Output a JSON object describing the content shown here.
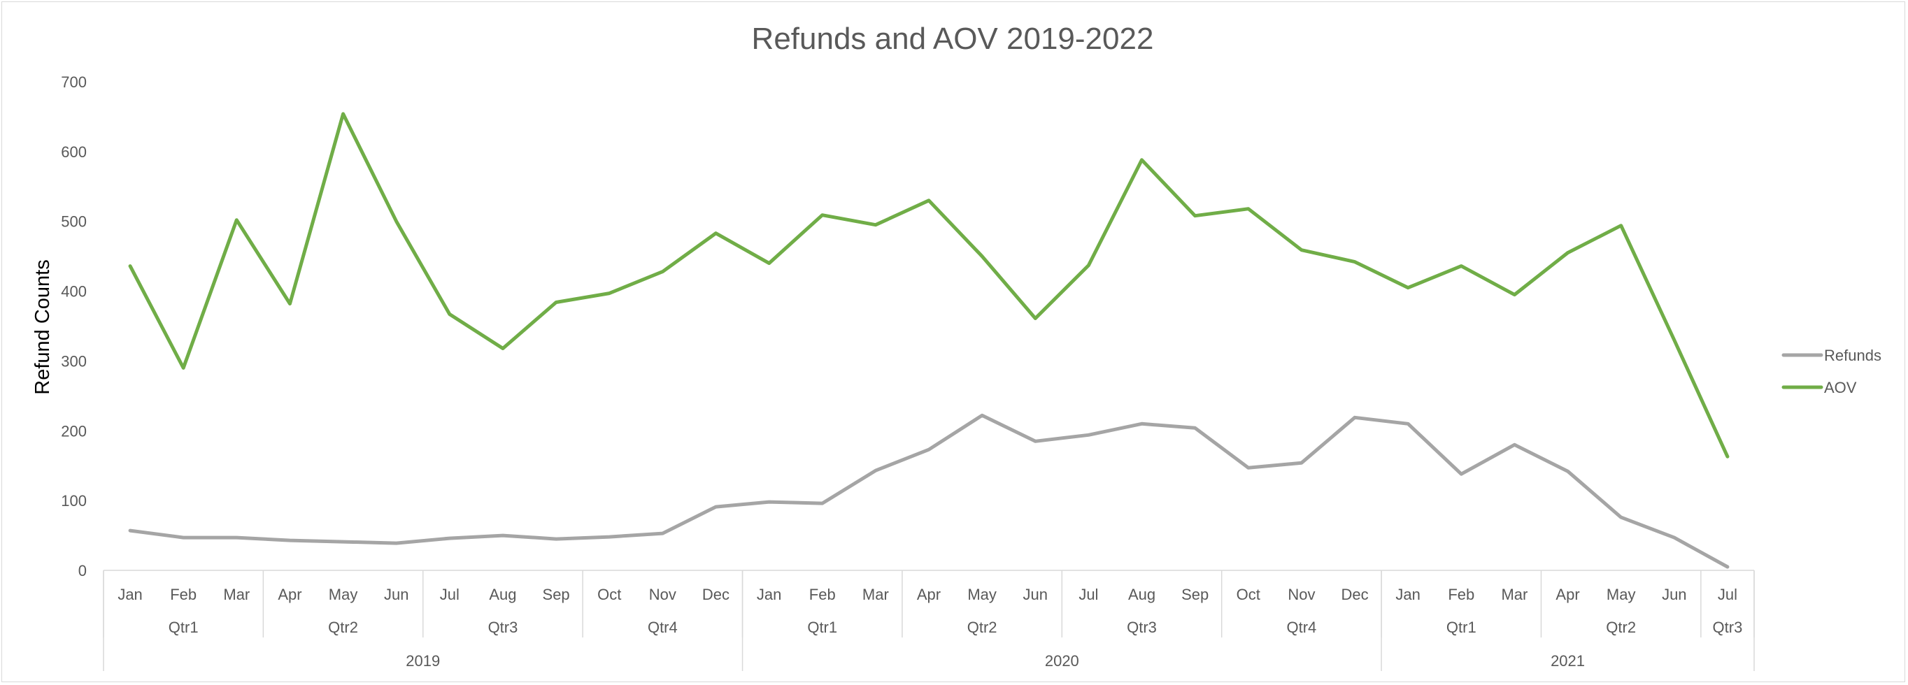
{
  "chart_data": {
    "type": "line",
    "title": "Refunds and AOV 2019-2022",
    "xlabel": "",
    "ylabel": "Refund Counts",
    "ylim": [
      0,
      700
    ],
    "yticks": [
      0,
      100,
      200,
      300,
      400,
      500,
      600,
      700
    ],
    "grid": false,
    "legend_position": "right",
    "categories": [
      "Jan",
      "Feb",
      "Mar",
      "Apr",
      "May",
      "Jun",
      "Jul",
      "Aug",
      "Sep",
      "Oct",
      "Nov",
      "Dec",
      "Jan",
      "Feb",
      "Mar",
      "Apr",
      "May",
      "Jun",
      "Jul",
      "Aug",
      "Sep",
      "Oct",
      "Nov",
      "Dec",
      "Jan",
      "Feb",
      "Mar",
      "Apr",
      "May",
      "Jun",
      "Jul"
    ],
    "quarters": [
      {
        "label": "Qtr1",
        "span": 3
      },
      {
        "label": "Qtr2",
        "span": 3
      },
      {
        "label": "Qtr3",
        "span": 3
      },
      {
        "label": "Qtr4",
        "span": 3
      },
      {
        "label": "Qtr1",
        "span": 3
      },
      {
        "label": "Qtr2",
        "span": 3
      },
      {
        "label": "Qtr3",
        "span": 3
      },
      {
        "label": "Qtr4",
        "span": 3
      },
      {
        "label": "Qtr1",
        "span": 3
      },
      {
        "label": "Qtr2",
        "span": 3
      },
      {
        "label": "Qtr3",
        "span": 1
      }
    ],
    "years": [
      {
        "label": "2019",
        "span": 12
      },
      {
        "label": "2020",
        "span": 12
      },
      {
        "label": "2021",
        "span": 7
      }
    ],
    "series": [
      {
        "name": "Refunds",
        "color": "#a5a5a5",
        "values": [
          57,
          47,
          47,
          43,
          41,
          39,
          46,
          50,
          45,
          48,
          53,
          91,
          98,
          96,
          143,
          173,
          222,
          185,
          194,
          210,
          204,
          147,
          154,
          219,
          210,
          138,
          180,
          142,
          76,
          47,
          5
        ]
      },
      {
        "name": "AOV",
        "color": "#70ad47",
        "values": [
          436,
          290,
          502,
          382,
          654,
          500,
          367,
          318,
          384,
          397,
          428,
          483,
          440,
          509,
          495,
          530,
          450,
          361,
          437,
          588,
          508,
          518,
          459,
          442,
          405,
          436,
          395,
          455,
          494,
          330,
          163
        ]
      }
    ]
  }
}
